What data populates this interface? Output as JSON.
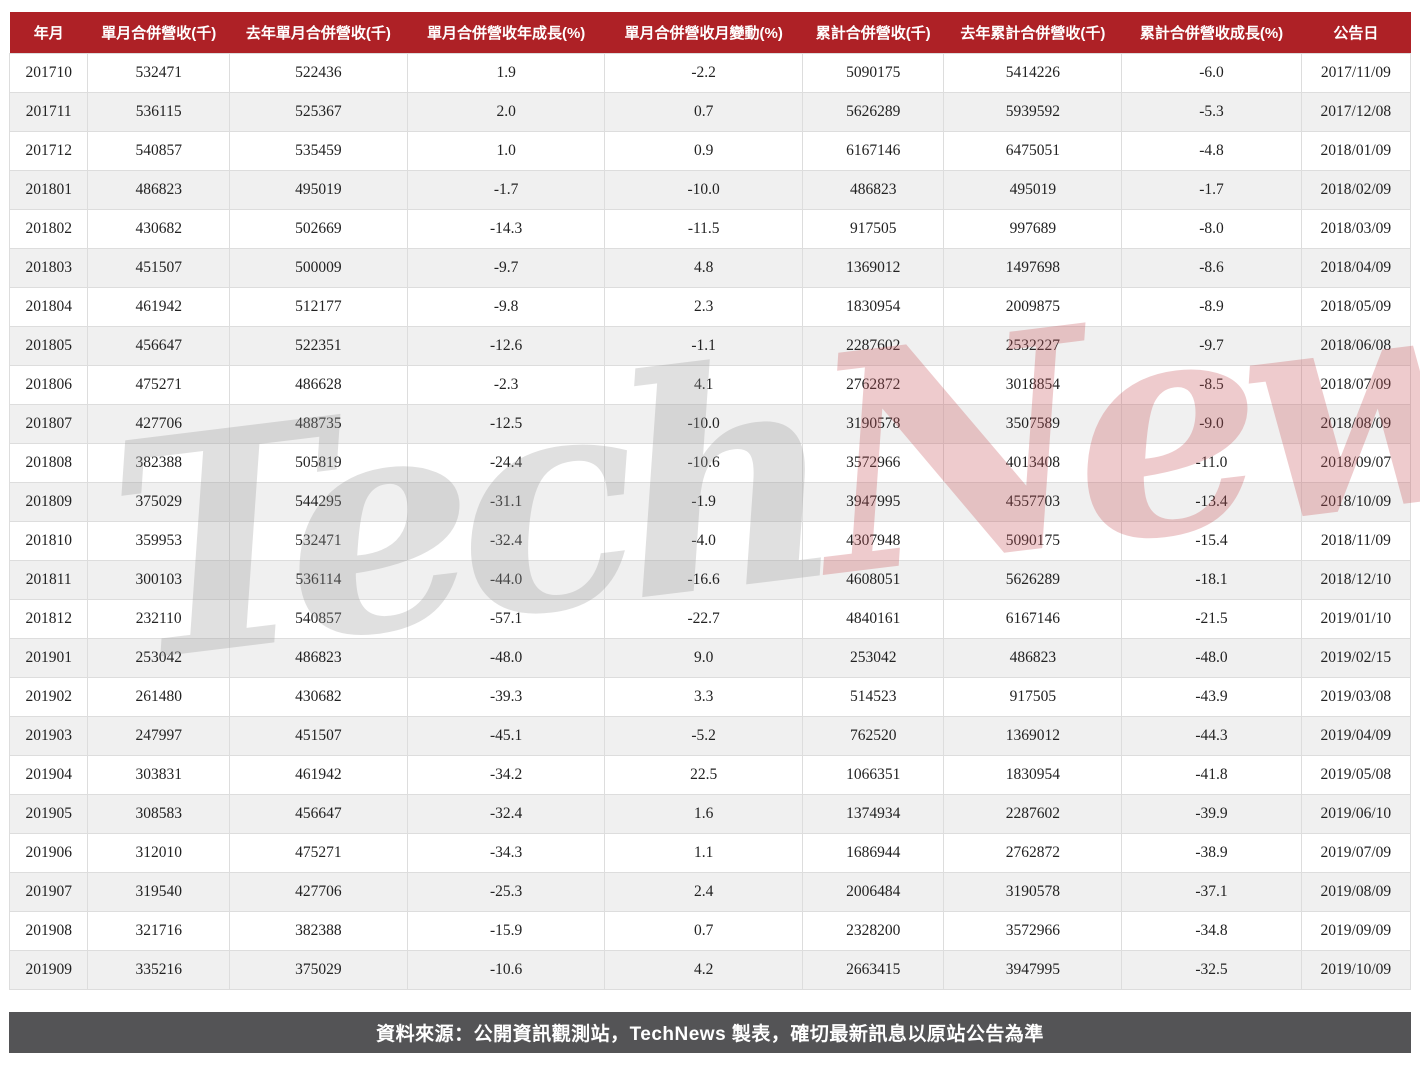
{
  "chart_data": {
    "type": "table",
    "title": "月營收統計表 (Monthly consolidated revenue table)",
    "columns": [
      "年月",
      "單月合併營收(千)",
      "去年單月合併營收(千)",
      "單月合併營收年成長(%)",
      "單月合併營收月變動(%)",
      "累計合併營收(千)",
      "去年累計合併營收(千)",
      "累計合併營收成長(%)",
      "公告日"
    ],
    "rows": [
      [
        "201710",
        "532471",
        "522436",
        "1.9",
        "-2.2",
        "5090175",
        "5414226",
        "-6.0",
        "2017/11/09"
      ],
      [
        "201711",
        "536115",
        "525367",
        "2.0",
        "0.7",
        "5626289",
        "5939592",
        "-5.3",
        "2017/12/08"
      ],
      [
        "201712",
        "540857",
        "535459",
        "1.0",
        "0.9",
        "6167146",
        "6475051",
        "-4.8",
        "2018/01/09"
      ],
      [
        "201801",
        "486823",
        "495019",
        "-1.7",
        "-10.0",
        "486823",
        "495019",
        "-1.7",
        "2018/02/09"
      ],
      [
        "201802",
        "430682",
        "502669",
        "-14.3",
        "-11.5",
        "917505",
        "997689",
        "-8.0",
        "2018/03/09"
      ],
      [
        "201803",
        "451507",
        "500009",
        "-9.7",
        "4.8",
        "1369012",
        "1497698",
        "-8.6",
        "2018/04/09"
      ],
      [
        "201804",
        "461942",
        "512177",
        "-9.8",
        "2.3",
        "1830954",
        "2009875",
        "-8.9",
        "2018/05/09"
      ],
      [
        "201805",
        "456647",
        "522351",
        "-12.6",
        "-1.1",
        "2287602",
        "2532227",
        "-9.7",
        "2018/06/08"
      ],
      [
        "201806",
        "475271",
        "486628",
        "-2.3",
        "4.1",
        "2762872",
        "3018854",
        "-8.5",
        "2018/07/09"
      ],
      [
        "201807",
        "427706",
        "488735",
        "-12.5",
        "-10.0",
        "3190578",
        "3507589",
        "-9.0",
        "2018/08/09"
      ],
      [
        "201808",
        "382388",
        "505819",
        "-24.4",
        "-10.6",
        "3572966",
        "4013408",
        "-11.0",
        "2018/09/07"
      ],
      [
        "201809",
        "375029",
        "544295",
        "-31.1",
        "-1.9",
        "3947995",
        "4557703",
        "-13.4",
        "2018/10/09"
      ],
      [
        "201810",
        "359953",
        "532471",
        "-32.4",
        "-4.0",
        "4307948",
        "5090175",
        "-15.4",
        "2018/11/09"
      ],
      [
        "201811",
        "300103",
        "536114",
        "-44.0",
        "-16.6",
        "4608051",
        "5626289",
        "-18.1",
        "2018/12/10"
      ],
      [
        "201812",
        "232110",
        "540857",
        "-57.1",
        "-22.7",
        "4840161",
        "6167146",
        "-21.5",
        "2019/01/10"
      ],
      [
        "201901",
        "253042",
        "486823",
        "-48.0",
        "9.0",
        "253042",
        "486823",
        "-48.0",
        "2019/02/15"
      ],
      [
        "201902",
        "261480",
        "430682",
        "-39.3",
        "3.3",
        "514523",
        "917505",
        "-43.9",
        "2019/03/08"
      ],
      [
        "201903",
        "247997",
        "451507",
        "-45.1",
        "-5.2",
        "762520",
        "1369012",
        "-44.3",
        "2019/04/09"
      ],
      [
        "201904",
        "303831",
        "461942",
        "-34.2",
        "22.5",
        "1066351",
        "1830954",
        "-41.8",
        "2019/05/08"
      ],
      [
        "201905",
        "308583",
        "456647",
        "-32.4",
        "1.6",
        "1374934",
        "2287602",
        "-39.9",
        "2019/06/10"
      ],
      [
        "201906",
        "312010",
        "475271",
        "-34.3",
        "1.1",
        "1686944",
        "2762872",
        "-38.9",
        "2019/07/09"
      ],
      [
        "201907",
        "319540",
        "427706",
        "-25.3",
        "2.4",
        "2006484",
        "3190578",
        "-37.1",
        "2019/08/09"
      ],
      [
        "201908",
        "321716",
        "382388",
        "-15.9",
        "0.7",
        "2328200",
        "3572966",
        "-34.8",
        "2019/09/09"
      ],
      [
        "201909",
        "335216",
        "375029",
        "-10.6",
        "4.2",
        "2663415",
        "3947995",
        "-32.5",
        "2019/10/09"
      ]
    ],
    "layout": {
      "header_bg": "#AE2126",
      "header_text": "#ffffff",
      "row_alt_bg": "#f0f0f0",
      "border_color": "#dddddd",
      "zebra_striping": true
    }
  },
  "watermark": {
    "part1": "Tech",
    "part2": "News",
    "color_part1": "#9a9a9a",
    "color_part2": "#c9565c"
  },
  "footer": {
    "text": "資料來源：公開資訊觀測站，TechNews 製表，確切最新訊息以原站公告為準",
    "bg_color": "#545456",
    "text_color": "#ffffff"
  }
}
